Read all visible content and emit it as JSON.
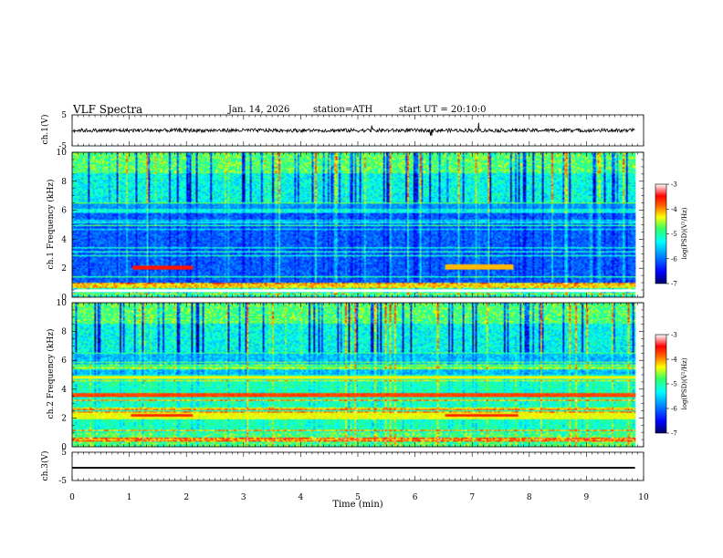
{
  "header": {
    "title": "VLF Spectra",
    "date": "Jan. 14, 2026",
    "station": "station=ATH",
    "start": "start UT = 20:10:0"
  },
  "chart_data": [
    {
      "type": "line",
      "panel": "ch1-waveform",
      "ylabel": "ch.1(V)",
      "ylim": [
        -5,
        5
      ],
      "ytick_labels": [
        "5",
        "-5"
      ],
      "xlim": [
        0,
        10
      ],
      "trace": {
        "baseline_V": 0,
        "noise_amplitude_V": 1.2,
        "spike_amplitude_V": 2.5,
        "end_min": 9.85
      }
    },
    {
      "type": "heatmap",
      "panel": "ch1-spectrogram",
      "ylabel": "ch.1 Frequency (kHz)",
      "ylim": [
        0,
        10
      ],
      "ytick_labels": [
        "0",
        "2",
        "4",
        "6",
        "8",
        "10"
      ],
      "xlim": [
        0,
        10
      ],
      "data_end_min": 9.85,
      "bright_band_khz": [
        1.95,
        2.15
      ],
      "bright_band_min": [
        1.05,
        2.1
      ],
      "quiet_gaps_khz": [
        0.35,
        0.55
      ],
      "colorbar": {
        "label": "log(PSD)(V²/Hz)",
        "range": [
          -7,
          -3
        ],
        "tick_labels": [
          "-3",
          "-4",
          "-5",
          "-6",
          "-7"
        ]
      }
    },
    {
      "type": "heatmap",
      "panel": "ch2-spectrogram",
      "ylabel": "ch.2 Frequency (kHz)",
      "ylim": [
        0,
        10
      ],
      "ytick_labels": [
        "0",
        "2",
        "4",
        "6",
        "8",
        "10"
      ],
      "xlim": [
        0,
        10
      ],
      "data_end_min": 9.85,
      "strong_bands_khz": [
        3.6,
        2.2,
        4.8
      ],
      "colorbar": {
        "label": "log(PSD)(V²/Hz)",
        "range": [
          -7,
          -3
        ],
        "tick_labels": [
          "-3",
          "-4",
          "-5",
          "-6",
          "-7"
        ]
      }
    },
    {
      "type": "line",
      "panel": "ch3-waveform",
      "ylabel": "ch.3(V)",
      "ylim": [
        -5,
        5
      ],
      "ytick_labels": [
        "5",
        "-5"
      ],
      "xlim": [
        0,
        10
      ],
      "trace": {
        "baseline_V": -0.5,
        "thickness_V": 0.6,
        "end_min": 9.85
      }
    }
  ],
  "xaxis": {
    "label": "Time (min)",
    "tick_labels": [
      "0",
      "1",
      "2",
      "3",
      "4",
      "5",
      "6",
      "7",
      "8",
      "9",
      "10"
    ]
  },
  "colors": {
    "colormap": [
      "#000066",
      "#0000ff",
      "#0099ff",
      "#00ffff",
      "#33ff66",
      "#ffff00",
      "#ff6600",
      "#ff0000",
      "#ffffff"
    ]
  }
}
